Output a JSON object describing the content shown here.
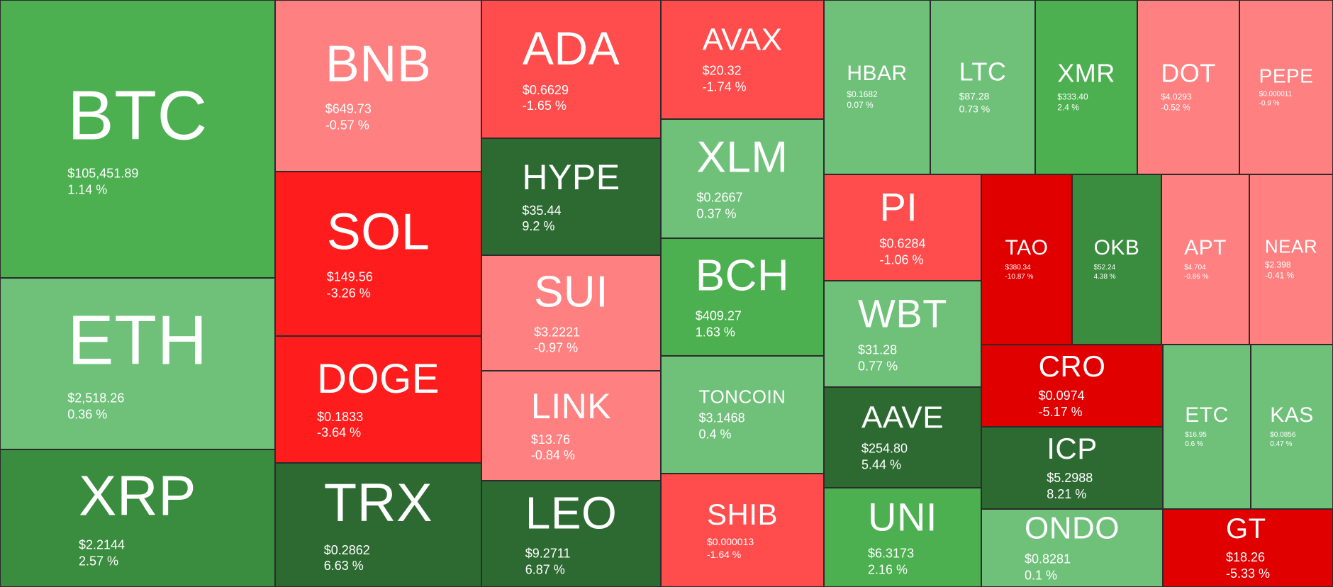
{
  "chart_data": {
    "type": "treemap",
    "colors": {
      "strong_red": "#e00000",
      "red": "#ff1c1c",
      "mid_red": "#ff4c4c",
      "light_red": "#ff8080",
      "light_green": "#6fc17a",
      "green": "#4caf50",
      "mid_green": "#3a8c3f",
      "dark_green": "#2d6a32"
    },
    "items": [
      {
        "symbol": "BTC",
        "price": "$105,451.89",
        "change": "1.14 %",
        "color": "#4caf50"
      },
      {
        "symbol": "ETH",
        "price": "$2,518.26",
        "change": "0.36 %",
        "color": "#6fc17a"
      },
      {
        "symbol": "XRP",
        "price": "$2.2144",
        "change": "2.57 %",
        "color": "#3a8c3f"
      },
      {
        "symbol": "BNB",
        "price": "$649.73",
        "change": "-0.57 %",
        "color": "#ff8080"
      },
      {
        "symbol": "SOL",
        "price": "$149.56",
        "change": "-3.26 %",
        "color": "#ff1c1c"
      },
      {
        "symbol": "DOGE",
        "price": "$0.1833",
        "change": "-3.64 %",
        "color": "#ff1c1c"
      },
      {
        "symbol": "TRX",
        "price": "$0.2862",
        "change": "6.63 %",
        "color": "#2d6a32"
      },
      {
        "symbol": "ADA",
        "price": "$0.6629",
        "change": "-1.65 %",
        "color": "#ff4c4c"
      },
      {
        "symbol": "HYPE",
        "price": "$35.44",
        "change": "9.2 %",
        "color": "#2d6a32"
      },
      {
        "symbol": "SUI",
        "price": "$3.2221",
        "change": "-0.97 %",
        "color": "#ff8080"
      },
      {
        "symbol": "LINK",
        "price": "$13.76",
        "change": "-0.84 %",
        "color": "#ff8080"
      },
      {
        "symbol": "LEO",
        "price": "$9.2711",
        "change": "6.87 %",
        "color": "#2d6a32"
      },
      {
        "symbol": "AVAX",
        "price": "$20.32",
        "change": "-1.74 %",
        "color": "#ff4c4c"
      },
      {
        "symbol": "XLM",
        "price": "$0.2667",
        "change": "0.37 %",
        "color": "#6fc17a"
      },
      {
        "symbol": "BCH",
        "price": "$409.27",
        "change": "1.63 %",
        "color": "#4caf50"
      },
      {
        "symbol": "TONCOIN",
        "price": "$3.1468",
        "change": "0.4 %",
        "color": "#6fc17a"
      },
      {
        "symbol": "SHIB",
        "price": "$0.000013",
        "change": "-1.64 %",
        "color": "#ff4c4c"
      },
      {
        "symbol": "HBAR",
        "price": "$0.1682",
        "change": "0.07 %",
        "color": "#6fc17a"
      },
      {
        "symbol": "LTC",
        "price": "$87.28",
        "change": "0.73 %",
        "color": "#6fc17a"
      },
      {
        "symbol": "XMR",
        "price": "$333.40",
        "change": "2.4 %",
        "color": "#4caf50"
      },
      {
        "symbol": "DOT",
        "price": "$4.0293",
        "change": "-0.52 %",
        "color": "#ff8080"
      },
      {
        "symbol": "PEPE",
        "price": "$0.000011",
        "change": "-0.9 %",
        "color": "#ff8080"
      },
      {
        "symbol": "PI",
        "price": "$0.6284",
        "change": "-1.06 %",
        "color": "#ff4c4c"
      },
      {
        "symbol": "WBT",
        "price": "$31.28",
        "change": "0.77 %",
        "color": "#6fc17a"
      },
      {
        "symbol": "AAVE",
        "price": "$254.80",
        "change": "5.44 %",
        "color": "#2d6a32"
      },
      {
        "symbol": "UNI",
        "price": "$6.3173",
        "change": "2.16 %",
        "color": "#4caf50"
      },
      {
        "symbol": "TAO",
        "price": "$380.34",
        "change": "-10.87 %",
        "color": "#e00000"
      },
      {
        "symbol": "OKB",
        "price": "$52.24",
        "change": "4.38 %",
        "color": "#3a8c3f"
      },
      {
        "symbol": "APT",
        "price": "$4.704",
        "change": "-0.86 %",
        "color": "#ff8080"
      },
      {
        "symbol": "NEAR",
        "price": "$2.398",
        "change": "-0.41 %",
        "color": "#ff8080"
      },
      {
        "symbol": "CRO",
        "price": "$0.0974",
        "change": "-5.17 %",
        "color": "#e00000"
      },
      {
        "symbol": "ICP",
        "price": "$5.2988",
        "change": "8.21 %",
        "color": "#2d6a32"
      },
      {
        "symbol": "ETC",
        "price": "$16.95",
        "change": "0.6 %",
        "color": "#6fc17a"
      },
      {
        "symbol": "KAS",
        "price": "$0.0856",
        "change": "0.47 %",
        "color": "#6fc17a"
      },
      {
        "symbol": "ONDO",
        "price": "$0.8281",
        "change": "0.1 %",
        "color": "#6fc17a"
      },
      {
        "symbol": "GT",
        "price": "$18.26",
        "change": "-5.33 %",
        "color": "#e00000"
      }
    ]
  }
}
